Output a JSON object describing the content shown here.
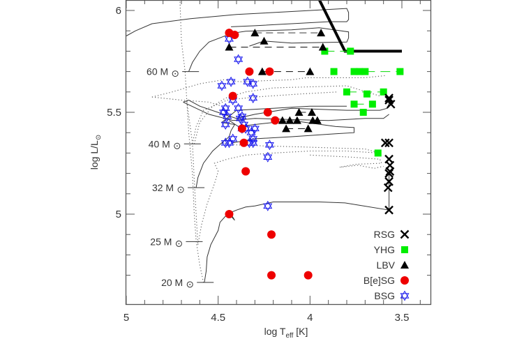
{
  "chart_data": {
    "type": "scatter",
    "title": "",
    "xlabel": "log T_eff [K]",
    "xlabel_parts": {
      "pre": "log T",
      "sub": "eff",
      "post": " [K]"
    },
    "ylabel": "log L/L⊙",
    "ylabel_parts": {
      "pre": "log L/L",
      "sub": "⊙"
    },
    "xlim": [
      5.0,
      3.4
    ],
    "ylim": [
      4.625,
      6.06
    ],
    "xticks": [
      5.0,
      4.5,
      4.0,
      3.5
    ],
    "xtick_labels": [
      "5",
      "4.5",
      "4",
      "3.5"
    ],
    "yticks": [
      5.0,
      5.5,
      6.0
    ],
    "ytick_labels": [
      "5",
      "5.5",
      "6"
    ],
    "x_minor_step": 0.1,
    "y_minor_step": 0.1,
    "grid": false,
    "legend_position": "bottom-right",
    "mass_labels": [
      {
        "label": "60 M⊙",
        "logT": 4.65,
        "logL": 5.7
      },
      {
        "label": "40 M⊙",
        "logT": 4.64,
        "logL": 5.345
      },
      {
        "label": "32 M⊙",
        "logT": 4.62,
        "logL": 5.13
      },
      {
        "label": "25 M⊙",
        "logT": 4.63,
        "logL": 4.865
      },
      {
        "label": "20 M⊙",
        "logT": 4.57,
        "logL": 4.665
      }
    ],
    "series": [
      {
        "name": "RSG",
        "marker": "cross",
        "color": "#000000",
        "points": [
          [
            3.57,
            5.57
          ],
          [
            3.56,
            5.54
          ],
          [
            3.57,
            5.56
          ],
          [
            3.59,
            5.35
          ],
          [
            3.57,
            5.35
          ],
          [
            3.57,
            5.27
          ],
          [
            3.565,
            5.24
          ],
          [
            3.565,
            5.21
          ],
          [
            3.57,
            5.2
          ],
          [
            3.57,
            5.16
          ],
          [
            3.575,
            5.13
          ],
          [
            3.57,
            5.02
          ]
        ]
      },
      {
        "name": "YHG",
        "marker": "square",
        "color": "#00ee00",
        "points": [
          [
            3.92,
            5.8
          ],
          [
            3.78,
            5.8
          ],
          [
            3.87,
            5.7
          ],
          [
            3.76,
            5.7
          ],
          [
            3.73,
            5.7
          ],
          [
            3.7,
            5.7
          ],
          [
            3.51,
            5.7
          ],
          [
            3.8,
            5.6
          ],
          [
            3.69,
            5.59
          ],
          [
            3.6,
            5.6
          ],
          [
            3.76,
            5.54
          ],
          [
            3.66,
            5.54
          ],
          [
            3.71,
            5.5
          ],
          [
            3.63,
            5.3
          ]
        ]
      },
      {
        "name": "LBV",
        "marker": "triangle",
        "color": "#000000",
        "points": [
          [
            4.3,
            5.89
          ],
          [
            3.94,
            5.89
          ],
          [
            4.25,
            5.85
          ],
          [
            4.44,
            5.82
          ],
          [
            3.93,
            5.82
          ],
          [
            4.26,
            5.7
          ],
          [
            4.0,
            5.7
          ],
          [
            4.06,
            5.5
          ],
          [
            3.99,
            5.5
          ],
          [
            4.15,
            5.46
          ],
          [
            4.11,
            5.46
          ],
          [
            4.07,
            5.46
          ],
          [
            3.985,
            5.46
          ],
          [
            3.96,
            5.46
          ],
          [
            4.13,
            5.42
          ],
          [
            4.01,
            5.42
          ]
        ]
      },
      {
        "name": "B[e]SG",
        "marker": "circle",
        "color": "#ee0000",
        "points": [
          [
            4.44,
            5.89
          ],
          [
            4.41,
            5.88
          ],
          [
            4.33,
            5.7
          ],
          [
            4.22,
            5.7
          ],
          [
            4.42,
            5.58
          ],
          [
            4.23,
            5.5
          ],
          [
            4.19,
            5.46
          ],
          [
            4.37,
            5.42
          ],
          [
            4.36,
            5.35
          ],
          [
            4.35,
            5.21
          ],
          [
            4.44,
            5.0
          ],
          [
            4.21,
            4.9
          ],
          [
            4.21,
            4.7
          ],
          [
            4.01,
            4.7
          ]
        ]
      },
      {
        "name": "BSG",
        "marker": "star6",
        "color": "#1a1aee",
        "points": [
          [
            4.44,
            5.86
          ],
          [
            4.39,
            5.76
          ],
          [
            4.48,
            5.63
          ],
          [
            4.43,
            5.65
          ],
          [
            4.34,
            5.65
          ],
          [
            4.31,
            5.64
          ],
          [
            4.42,
            5.56
          ],
          [
            4.31,
            5.57
          ],
          [
            4.46,
            5.52
          ],
          [
            4.47,
            5.5
          ],
          [
            4.45,
            5.48
          ],
          [
            4.39,
            5.52
          ],
          [
            4.37,
            5.48
          ],
          [
            4.38,
            5.47
          ],
          [
            4.36,
            5.44
          ],
          [
            4.46,
            5.44
          ],
          [
            4.37,
            5.42
          ],
          [
            4.35,
            5.42
          ],
          [
            4.3,
            5.42
          ],
          [
            4.32,
            5.4
          ],
          [
            4.42,
            5.37
          ],
          [
            4.46,
            5.35
          ],
          [
            4.44,
            5.35
          ],
          [
            4.22,
            5.34
          ],
          [
            4.23,
            5.28
          ],
          [
            4.31,
            5.37
          ],
          [
            4.31,
            5.35
          ],
          [
            4.23,
            5.04
          ],
          [
            4.33,
            5.35
          ]
        ]
      }
    ],
    "links": {
      "gray_dashed": [
        [
          [
            4.3,
            5.89
          ],
          [
            3.94,
            5.89
          ]
        ]
      ],
      "black_dashed": [
        [
          [
            4.44,
            5.82
          ],
          [
            3.93,
            5.82
          ]
        ],
        [
          [
            4.26,
            5.7
          ],
          [
            4.0,
            5.7
          ]
        ],
        [
          [
            4.13,
            5.42
          ],
          [
            4.01,
            5.42
          ]
        ],
        [
          [
            4.06,
            5.5
          ],
          [
            3.99,
            5.5
          ]
        ]
      ],
      "green": [
        [
          [
            3.92,
            5.8
          ],
          [
            3.78,
            5.8
          ]
        ],
        [
          [
            3.7,
            5.7
          ],
          [
            3.51,
            5.7
          ]
        ],
        [
          [
            3.8,
            5.6
          ],
          [
            3.6,
            5.6
          ]
        ],
        [
          [
            3.76,
            5.54
          ],
          [
            3.66,
            5.54
          ]
        ]
      ]
    },
    "humphreys_davidson_limit": [
      [
        3.97,
        6.09
      ],
      [
        3.81,
        5.8
      ],
      [
        3.5,
        5.8
      ]
    ],
    "tracks_solid": [
      [
        [
          4.66,
          5.7
        ],
        [
          4.64,
          5.745
        ],
        [
          4.6,
          5.8
        ],
        [
          4.55,
          5.845
        ],
        [
          4.46,
          5.876
        ],
        [
          4.44,
          5.886
        ],
        [
          4.35,
          5.898
        ],
        [
          4.1,
          5.905
        ],
        [
          3.95,
          5.915
        ],
        [
          3.79,
          5.895
        ],
        [
          3.79,
          5.865
        ],
        [
          3.8,
          5.845
        ],
        [
          4.1,
          5.84
        ],
        [
          4.25,
          5.85
        ],
        [
          4.33,
          5.825
        ]
      ],
      [
        [
          5.0,
          5.875
        ],
        [
          4.95,
          5.9
        ],
        [
          4.86,
          5.935
        ],
        [
          4.65,
          5.96
        ],
        [
          4.4,
          5.98
        ],
        [
          4.1,
          5.995
        ],
        [
          3.8,
          6.01
        ],
        [
          3.79,
          5.99
        ],
        [
          3.79,
          5.955
        ],
        [
          3.8,
          5.945
        ],
        [
          3.9,
          5.945
        ],
        [
          4.3,
          5.925
        ],
        [
          4.43,
          5.92
        ]
      ],
      [
        [
          4.69,
          5.55
        ],
        [
          4.66,
          5.56
        ],
        [
          4.6,
          5.53
        ],
        [
          4.47,
          5.49
        ],
        [
          4.4,
          5.47
        ],
        [
          4.3,
          5.49
        ],
        [
          4.1,
          5.52
        ],
        [
          3.8,
          5.51
        ],
        [
          3.62,
          5.51
        ],
        [
          3.58,
          5.52
        ],
        [
          3.565,
          5.555
        ]
      ],
      [
        [
          4.69,
          5.55
        ],
        [
          4.55,
          5.49
        ],
        [
          4.42,
          5.46
        ],
        [
          4.3,
          5.47
        ],
        [
          4.12,
          5.465
        ],
        [
          3.9,
          5.46
        ],
        [
          3.7,
          5.47
        ],
        [
          3.6,
          5.47
        ],
        [
          3.57,
          5.49
        ]
      ],
      [
        [
          4.44,
          5.46
        ],
        [
          4.39,
          5.43
        ],
        [
          4.3,
          5.44
        ],
        [
          4.1,
          5.46
        ],
        [
          3.86,
          5.43
        ],
        [
          3.76,
          5.425
        ],
        [
          3.76,
          5.4
        ],
        [
          3.86,
          5.395
        ],
        [
          4.1,
          5.38
        ],
        [
          4.3,
          5.37
        ],
        [
          4.42,
          5.35
        ]
      ],
      [
        [
          4.62,
          5.13
        ],
        [
          4.61,
          5.18
        ],
        [
          4.58,
          5.25
        ],
        [
          4.53,
          5.31
        ],
        [
          4.48,
          5.35
        ],
        [
          4.44,
          5.38
        ],
        [
          4.43,
          5.41
        ],
        [
          4.41,
          5.44
        ],
        [
          4.48,
          5.45
        ],
        [
          4.44,
          5.48
        ],
        [
          4.4,
          5.51
        ],
        [
          4.2,
          5.52
        ],
        [
          4.0,
          5.53
        ],
        [
          3.8,
          5.53
        ]
      ],
      [
        [
          4.575,
          4.665
        ],
        [
          4.565,
          4.72
        ],
        [
          4.56,
          4.79
        ],
        [
          4.54,
          4.85
        ],
        [
          4.5,
          4.92
        ],
        [
          4.49,
          4.96
        ],
        [
          4.45,
          5.0
        ],
        [
          4.44,
          5.005
        ],
        [
          4.4,
          5.02
        ],
        [
          4.35,
          5.035
        ],
        [
          4.3,
          5.04
        ],
        [
          4.2,
          5.06
        ],
        [
          4.1,
          5.06
        ],
        [
          3.95,
          5.06
        ],
        [
          3.81,
          5.055
        ],
        [
          3.74,
          5.045
        ],
        [
          3.57,
          5.02
        ],
        [
          3.57,
          5.2
        ]
      ],
      [
        [
          4.44,
          5.0
        ],
        [
          4.43,
          4.99
        ],
        [
          4.41,
          4.97
        ],
        [
          4.43,
          5.0
        ]
      ]
    ],
    "tracks_dotted": [
      [
        [
          4.71,
          6.1
        ],
        [
          4.7,
          5.85
        ],
        [
          4.68,
          5.7
        ],
        [
          4.67,
          5.55
        ],
        [
          4.66,
          5.4
        ],
        [
          4.64,
          5.2
        ],
        [
          4.63,
          5.0
        ],
        [
          4.62,
          4.87
        ],
        [
          4.6,
          4.75
        ],
        [
          4.58,
          4.665
        ]
      ],
      [
        [
          4.67,
          5.55
        ],
        [
          4.64,
          5.35
        ],
        [
          4.63,
          5.17
        ],
        [
          4.62,
          5.0
        ],
        [
          4.61,
          4.85
        ]
      ],
      [
        [
          4.63,
          5.345
        ],
        [
          4.6,
          5.45
        ],
        [
          4.53,
          5.53
        ],
        [
          4.46,
          5.57
        ],
        [
          4.35,
          5.6
        ],
        [
          4.2,
          5.62
        ],
        [
          4.0,
          5.625
        ],
        [
          3.8,
          5.63
        ],
        [
          3.62,
          5.58
        ]
      ],
      [
        [
          4.64,
          5.345
        ],
        [
          4.62,
          5.43
        ],
        [
          4.58,
          5.51
        ],
        [
          4.45,
          5.56
        ],
        [
          4.3,
          5.575
        ],
        [
          4.05,
          5.59
        ],
        [
          3.85,
          5.6
        ]
      ],
      [
        [
          4.86,
          5.575
        ],
        [
          4.75,
          5.6
        ],
        [
          4.6,
          5.64
        ],
        [
          4.47,
          5.66
        ],
        [
          4.38,
          5.65
        ],
        [
          4.25,
          5.655
        ],
        [
          4.1,
          5.66
        ],
        [
          4.02,
          5.67
        ],
        [
          3.7,
          5.67
        ],
        [
          3.59,
          5.68
        ]
      ],
      [
        [
          4.86,
          5.575
        ],
        [
          4.7,
          5.56
        ],
        [
          4.55,
          5.55
        ],
        [
          4.48,
          5.53
        ]
      ],
      [
        [
          4.61,
          4.85
        ],
        [
          4.59,
          4.95
        ],
        [
          4.56,
          5.05
        ],
        [
          4.52,
          5.15
        ],
        [
          4.5,
          5.21
        ],
        [
          4.52,
          5.25
        ],
        [
          4.45,
          5.27
        ],
        [
          4.35,
          5.29
        ],
        [
          4.2,
          5.3
        ],
        [
          4.0,
          5.31
        ],
        [
          3.8,
          5.31
        ],
        [
          3.62,
          5.3
        ]
      ],
      [
        [
          4.0,
          5.29
        ],
        [
          3.78,
          5.28
        ],
        [
          3.62,
          5.27
        ],
        [
          3.61,
          5.25
        ],
        [
          3.75,
          5.245
        ],
        [
          3.84,
          5.23
        ],
        [
          3.74,
          5.24
        ],
        [
          3.65,
          5.225
        ],
        [
          3.6,
          5.235
        ]
      ],
      [
        [
          4.48,
          5.35
        ],
        [
          4.4,
          5.34
        ],
        [
          4.25,
          5.335
        ],
        [
          4.05,
          5.33
        ],
        [
          3.7,
          5.32
        ],
        [
          3.62,
          5.3
        ]
      ]
    ]
  }
}
